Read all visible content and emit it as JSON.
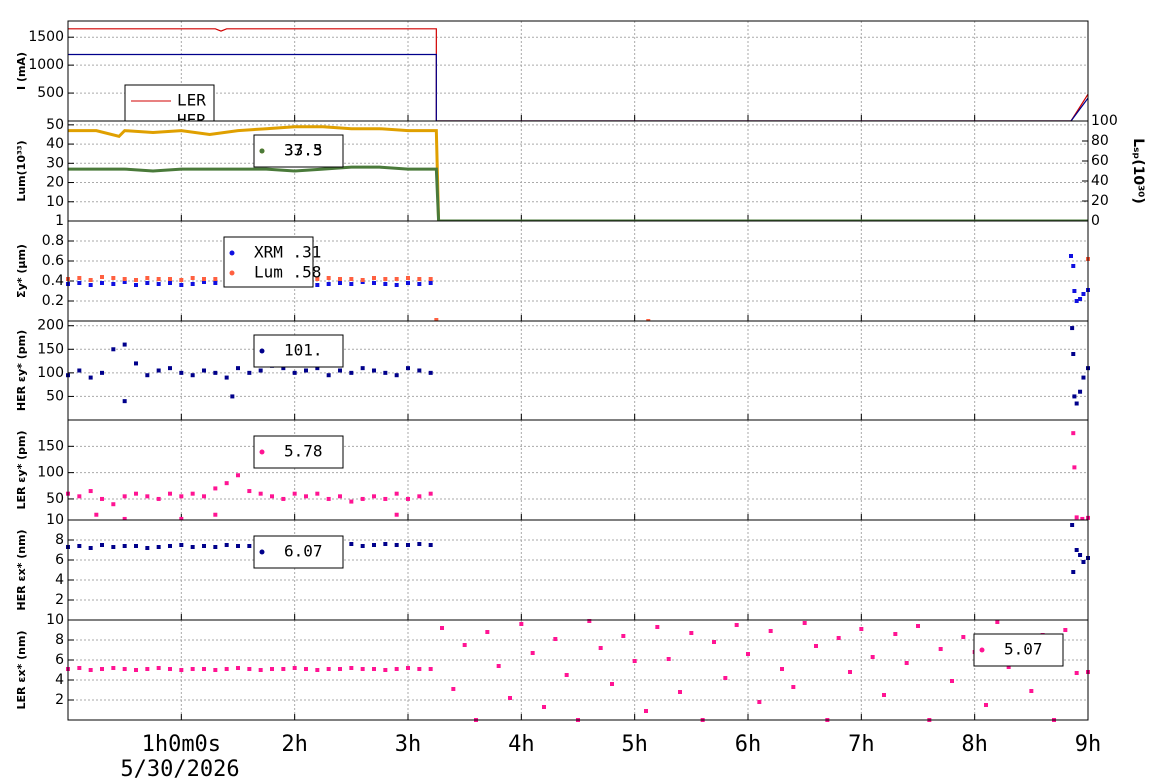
{
  "chart_data": [
    {
      "type": "line",
      "ylabel": "I (mA)",
      "ylim": [
        0,
        1790
      ],
      "yticks": [
        500,
        1000,
        1500
      ],
      "grid": true,
      "series": [
        {
          "name": "LER",
          "color": "#d00000",
          "x": [
            0,
            0.5,
            1,
            1.3,
            1.35,
            1.4,
            2,
            2.5,
            3,
            3.25,
            3.25,
            8.85,
            9
          ],
          "values": [
            1650,
            1650,
            1650,
            1650,
            1610,
            1650,
            1650,
            1650,
            1650,
            1650,
            0,
            0,
            480
          ]
        },
        {
          "name": "HER",
          "color": "#00008b",
          "x": [
            0,
            1,
            2,
            3,
            3.25,
            3.25,
            8.85,
            9
          ],
          "values": [
            1190,
            1190,
            1190,
            1190,
            1190,
            0,
            0,
            410
          ]
        }
      ]
    },
    {
      "type": "line",
      "ylabel": "Lum(10³³)",
      "ylim": [
        0,
        52
      ],
      "yticks": [
        10,
        20,
        30,
        40,
        50
      ],
      "y2label": "Lₛₚ(10³⁰)",
      "y2lim": [
        0,
        100
      ],
      "y2ticks": [
        0,
        20,
        40,
        60,
        80,
        100
      ],
      "grid": true,
      "series": [
        {
          "name": "37.5",
          "color": "#e0a000",
          "x": [
            0,
            0.25,
            0.45,
            0.5,
            0.75,
            1,
            1.25,
            1.5,
            1.75,
            2,
            2.25,
            2.5,
            2.75,
            3,
            3.25,
            3.27,
            9
          ],
          "values": [
            47,
            47,
            44,
            47,
            46,
            47,
            45,
            47,
            48,
            49,
            49,
            48,
            48,
            47,
            47,
            0,
            0
          ]
        },
        {
          "name": "33.3",
          "color": "#4a7a3a",
          "x": [
            0,
            0.25,
            0.5,
            0.75,
            1,
            1.25,
            1.5,
            1.75,
            2,
            2.25,
            2.5,
            2.75,
            3,
            3.25,
            3.27,
            9
          ],
          "values": [
            27,
            27,
            27,
            26,
            27,
            27,
            27,
            27,
            26,
            27,
            28,
            28,
            27,
            27,
            0,
            0
          ]
        }
      ]
    },
    {
      "type": "scatter",
      "ylabel": "Σy* (μm)",
      "ylim": [
        0,
        1
      ],
      "yticks": [
        0.2,
        0.4,
        0.6,
        0.8,
        1
      ],
      "grid": true,
      "series": [
        {
          "name": "XRM  .31",
          "color": "#1010e0",
          "x": [
            0,
            0.1,
            0.2,
            0.3,
            0.4,
            0.5,
            0.6,
            0.7,
            0.8,
            0.9,
            1,
            1.1,
            1.2,
            1.3,
            1.4,
            1.5,
            1.6,
            1.7,
            1.8,
            1.9,
            2,
            2.1,
            2.2,
            2.3,
            2.4,
            2.5,
            2.6,
            2.7,
            2.8,
            2.9,
            3,
            3.1,
            3.2,
            8.85,
            8.87,
            8.88,
            8.9,
            8.93,
            8.96,
            9
          ],
          "values": [
            0.37,
            0.38,
            0.36,
            0.38,
            0.37,
            0.39,
            0.36,
            0.38,
            0.37,
            0.38,
            0.36,
            0.37,
            0.39,
            0.38,
            0.37,
            0.38,
            0.36,
            0.37,
            0.38,
            0.39,
            0.37,
            0.38,
            0.36,
            0.37,
            0.38,
            0.37,
            0.39,
            0.38,
            0.37,
            0.36,
            0.38,
            0.37,
            0.38,
            0.65,
            0.55,
            0.3,
            0.2,
            0.22,
            0.27,
            0.31
          ]
        },
        {
          "name": "Lum  .58",
          "color": "#ff6040",
          "x": [
            0,
            0.1,
            0.2,
            0.3,
            0.4,
            0.5,
            0.6,
            0.7,
            0.8,
            0.9,
            1,
            1.1,
            1.2,
            1.3,
            1.4,
            1.5,
            1.6,
            1.7,
            1.8,
            1.9,
            2,
            2.1,
            2.2,
            2.3,
            2.4,
            2.5,
            2.6,
            2.7,
            2.8,
            2.9,
            3,
            3.1,
            3.2,
            3.25,
            5.12,
            9
          ],
          "values": [
            0.42,
            0.43,
            0.41,
            0.44,
            0.43,
            0.42,
            0.41,
            0.43,
            0.42,
            0.42,
            0.41,
            0.43,
            0.42,
            0.42,
            0.43,
            0.41,
            0.42,
            0.44,
            0.42,
            0.43,
            0.42,
            0.41,
            0.42,
            0.43,
            0.42,
            0.42,
            0.41,
            0.43,
            0.42,
            0.42,
            0.43,
            0.42,
            0.42,
            0.01,
            0,
            0.62
          ]
        }
      ]
    },
    {
      "type": "scatter",
      "ylabel": "HER εy* (pm)",
      "ylim": [
        0,
        210
      ],
      "yticks": [
        50,
        100,
        150,
        200
      ],
      "grid": true,
      "series": [
        {
          "name": "101.",
          "color": "#00008b",
          "x": [
            0,
            0.1,
            0.2,
            0.3,
            0.4,
            0.5,
            0.6,
            0.7,
            0.8,
            0.9,
            1,
            1.1,
            1.2,
            1.3,
            1.4,
            1.5,
            1.6,
            1.7,
            1.8,
            1.9,
            2,
            2.1,
            2.2,
            2.3,
            2.4,
            2.5,
            2.6,
            2.7,
            2.8,
            2.9,
            3,
            3.1,
            3.2,
            0.5,
            1.45,
            8.86,
            8.87,
            8.88,
            8.9,
            8.93,
            8.96,
            9
          ],
          "values": [
            95,
            105,
            90,
            100,
            150,
            160,
            120,
            95,
            105,
            110,
            100,
            95,
            105,
            100,
            90,
            110,
            100,
            105,
            115,
            110,
            100,
            105,
            110,
            95,
            105,
            100,
            110,
            105,
            100,
            95,
            110,
            105,
            100,
            40,
            50,
            195,
            140,
            50,
            35,
            60,
            90,
            110
          ]
        }
      ]
    },
    {
      "type": "scatter",
      "ylabel": "LER εy* (pm)",
      "ylim": [
        10,
        200
      ],
      "yticks": [
        10,
        50,
        100,
        150
      ],
      "grid": true,
      "series": [
        {
          "name": "5.78",
          "color": "#ff1493",
          "x": [
            0,
            0.1,
            0.2,
            0.3,
            0.4,
            0.5,
            0.6,
            0.7,
            0.8,
            0.9,
            1,
            1.1,
            1.2,
            1.3,
            1.4,
            1.5,
            1.6,
            1.7,
            1.8,
            1.9,
            2,
            2.1,
            2.2,
            2.3,
            2.4,
            2.5,
            2.6,
            2.7,
            2.8,
            2.9,
            3,
            3.1,
            3.2,
            0.25,
            0.5,
            1,
            1.3,
            2.9,
            8.87,
            8.88,
            8.9,
            8.95,
            9
          ],
          "values": [
            60,
            55,
            65,
            50,
            40,
            55,
            60,
            55,
            50,
            60,
            55,
            60,
            55,
            70,
            80,
            95,
            65,
            60,
            55,
            50,
            60,
            55,
            60,
            50,
            55,
            45,
            50,
            55,
            50,
            60,
            50,
            55,
            60,
            20,
            12,
            12,
            20,
            20,
            175,
            110,
            15,
            12,
            14
          ]
        }
      ]
    },
    {
      "type": "scatter",
      "ylabel": "HER εx* (nm)",
      "ylim": [
        0,
        10
      ],
      "yticks": [
        2,
        4,
        6,
        8
      ],
      "grid": true,
      "series": [
        {
          "name": "6.07",
          "color": "#00008b",
          "x": [
            0,
            0.1,
            0.2,
            0.3,
            0.4,
            0.5,
            0.6,
            0.7,
            0.8,
            0.9,
            1,
            1.1,
            1.2,
            1.3,
            1.4,
            1.5,
            1.6,
            1.7,
            1.8,
            1.9,
            2,
            2.1,
            2.2,
            2.3,
            2.4,
            2.5,
            2.6,
            2.7,
            2.8,
            2.9,
            3,
            3.1,
            3.2,
            8.86,
            8.87,
            8.9,
            8.93,
            8.96,
            9
          ],
          "values": [
            7.3,
            7.4,
            7.2,
            7.5,
            7.3,
            7.4,
            7.4,
            7.2,
            7.3,
            7.4,
            7.5,
            7.3,
            7.4,
            7.3,
            7.5,
            7.4,
            7.4,
            7.3,
            7.5,
            7.4,
            7.6,
            7.5,
            7.4,
            7.5,
            7.5,
            7.6,
            7.4,
            7.5,
            7.6,
            7.5,
            7.5,
            7.6,
            7.5,
            9.5,
            4.8,
            7,
            6.5,
            5.8,
            6.2
          ]
        }
      ]
    },
    {
      "type": "scatter",
      "ylabel": "LER εx* (nm)",
      "ylim": [
        0,
        10
      ],
      "yticks": [
        2,
        4,
        6,
        8,
        10
      ],
      "grid": true,
      "xlim": [
        0,
        9
      ],
      "xticks": [
        {
          "value": 1,
          "label": "1h0m0s"
        },
        {
          "value": 2,
          "label": "2h"
        },
        {
          "value": 3,
          "label": "3h"
        },
        {
          "value": 4,
          "label": "4h"
        },
        {
          "value": 5,
          "label": "5h"
        },
        {
          "value": 6,
          "label": "6h"
        },
        {
          "value": 7,
          "label": "7h"
        },
        {
          "value": 8,
          "label": "8h"
        },
        {
          "value": 9,
          "label": "9h"
        }
      ],
      "date_label": "5/30/2026",
      "series": [
        {
          "name": "5.07",
          "color": "#ff1493",
          "x": [
            0,
            0.1,
            0.2,
            0.3,
            0.4,
            0.5,
            0.6,
            0.7,
            0.8,
            0.9,
            1,
            1.1,
            1.2,
            1.3,
            1.4,
            1.5,
            1.6,
            1.7,
            1.8,
            1.9,
            2,
            2.1,
            2.2,
            2.3,
            2.4,
            2.5,
            2.6,
            2.7,
            2.8,
            2.9,
            3,
            3.1,
            3.2,
            3.3,
            3.4,
            3.5,
            3.6,
            3.7,
            3.8,
            3.9,
            4,
            4.1,
            4.2,
            4.3,
            4.4,
            4.5,
            4.6,
            4.7,
            4.8,
            4.9,
            5,
            5.1,
            5.2,
            5.3,
            5.4,
            5.5,
            5.6,
            5.7,
            5.8,
            5.9,
            6,
            6.1,
            6.2,
            6.3,
            6.4,
            6.5,
            6.6,
            6.7,
            6.8,
            6.9,
            7,
            7.1,
            7.2,
            7.3,
            7.4,
            7.5,
            7.6,
            7.7,
            7.8,
            7.9,
            8,
            8.1,
            8.2,
            8.3,
            8.4,
            8.5,
            8.6,
            8.7,
            8.8,
            8.9,
            9
          ],
          "values": [
            5.1,
            5.2,
            5.0,
            5.1,
            5.2,
            5.1,
            5.0,
            5.1,
            5.2,
            5.1,
            5.0,
            5.1,
            5.1,
            5.0,
            5.1,
            5.2,
            5.1,
            5.0,
            5.1,
            5.1,
            5.2,
            5.1,
            5.0,
            5.1,
            5.1,
            5.2,
            5.1,
            5.1,
            5.0,
            5.1,
            5.2,
            5.1,
            5.1,
            9.2,
            3.1,
            7.5,
            0,
            8.8,
            5.4,
            2.2,
            9.6,
            6.7,
            1.3,
            8.1,
            4.5,
            0,
            9.9,
            7.2,
            3.6,
            8.4,
            5.9,
            0.9,
            9.3,
            6.1,
            2.8,
            8.7,
            0,
            7.8,
            4.2,
            9.5,
            6.6,
            1.8,
            8.9,
            5.1,
            3.3,
            9.7,
            7.4,
            0,
            8.2,
            4.8,
            9.1,
            6.3,
            2.5,
            8.6,
            5.7,
            9.4,
            0,
            7.1,
            3.9,
            8.3,
            6.8,
            1.5,
            9.8,
            5.3,
            7.7,
            2.9,
            8.5,
            0,
            9.0,
            4.7,
            4.8
          ]
        }
      ]
    }
  ]
}
